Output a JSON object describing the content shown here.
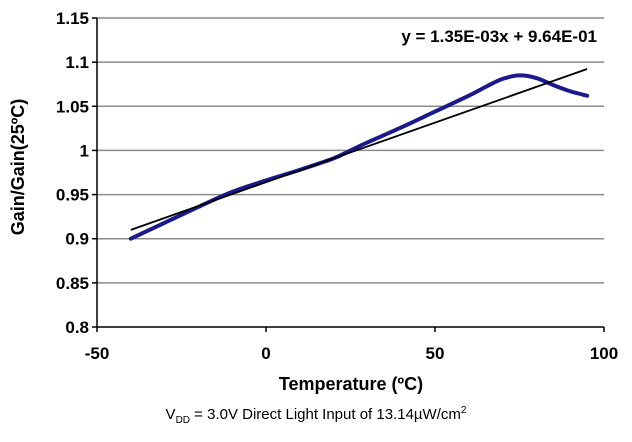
{
  "chart_data": {
    "type": "line",
    "xlabel": "Temperature (ºC)",
    "ylabel": "Gain/Gain(25ºC)",
    "xlim": [
      -50,
      100
    ],
    "ylim": [
      0.8,
      1.15
    ],
    "x_ticks": [
      "-50",
      "0",
      "50",
      "100"
    ],
    "y_ticks": [
      "0.8",
      "0.85",
      "0.9",
      "0.95",
      "1",
      "1.05",
      "1.1",
      "1.15"
    ],
    "grid": "horizontal",
    "series": [
      {
        "color": "#1a1a8c",
        "x": [
          -40,
          -30,
          -20,
          -10,
          0,
          10,
          20,
          25,
          30,
          40,
          50,
          60,
          65,
          70,
          75,
          80,
          85,
          90,
          95
        ],
        "y": [
          0.9,
          0.918,
          0.936,
          0.953,
          0.966,
          0.978,
          0.991,
          1.0,
          1.009,
          1.026,
          1.044,
          1.062,
          1.072,
          1.081,
          1.085,
          1.082,
          1.074,
          1.067,
          1.062
        ]
      }
    ],
    "trendline": {
      "color": "#000000",
      "slope": 0.00135,
      "intercept": 0.964,
      "x_range": [
        -40,
        95
      ],
      "equation": "y = 1.35E-03x + 9.64E-01"
    }
  },
  "caption": {
    "v": "V",
    "sub": "DD",
    "text": " = 3.0V Direct Light Input of 13.14µW/cm",
    "sup": "2"
  }
}
